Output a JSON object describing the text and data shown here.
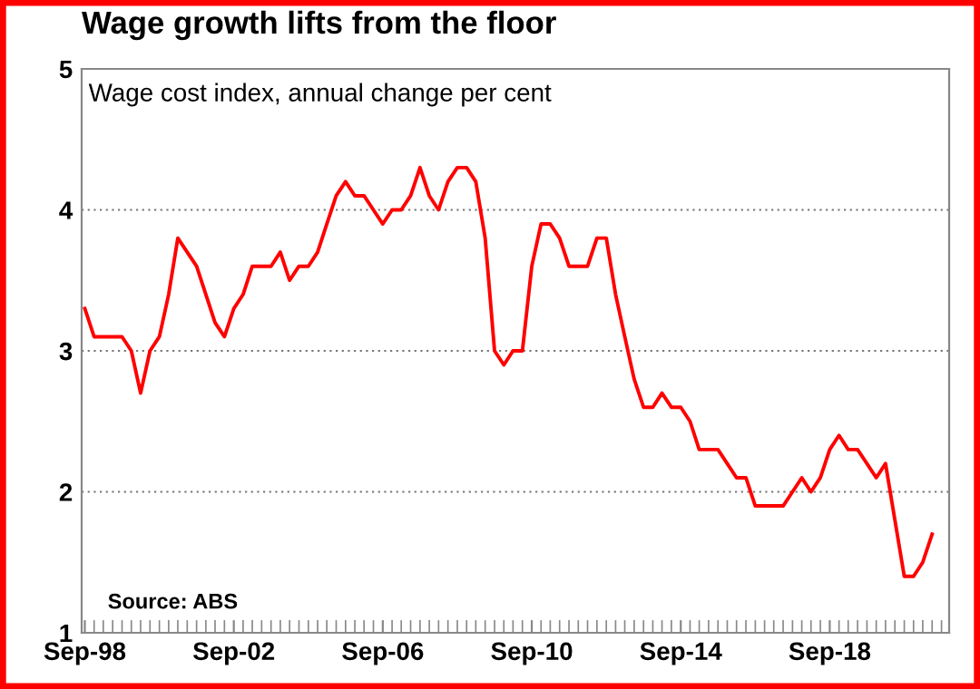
{
  "chart_data": {
    "type": "line",
    "title": "Wage growth lifts from the floor",
    "subtitle": "Wage cost index, annual change per cent",
    "annotations": [
      "Source: ABS"
    ],
    "x": [
      "1998-09",
      "1998-12",
      "1999-03",
      "1999-06",
      "1999-09",
      "1999-12",
      "2000-03",
      "2000-06",
      "2000-09",
      "2000-12",
      "2001-03",
      "2001-06",
      "2001-09",
      "2001-12",
      "2002-03",
      "2002-06",
      "2002-09",
      "2002-12",
      "2003-03",
      "2003-06",
      "2003-09",
      "2003-12",
      "2004-03",
      "2004-06",
      "2004-09",
      "2004-12",
      "2005-03",
      "2005-06",
      "2005-09",
      "2005-12",
      "2006-03",
      "2006-06",
      "2006-09",
      "2006-12",
      "2007-03",
      "2007-06",
      "2007-09",
      "2007-12",
      "2008-03",
      "2008-06",
      "2008-09",
      "2008-12",
      "2009-03",
      "2009-06",
      "2009-09",
      "2009-12",
      "2010-03",
      "2010-06",
      "2010-09",
      "2010-12",
      "2011-03",
      "2011-06",
      "2011-09",
      "2011-12",
      "2012-03",
      "2012-06",
      "2012-09",
      "2012-12",
      "2013-03",
      "2013-06",
      "2013-09",
      "2013-12",
      "2014-03",
      "2014-06",
      "2014-09",
      "2014-12",
      "2015-03",
      "2015-06",
      "2015-09",
      "2015-12",
      "2016-03",
      "2016-06",
      "2016-09",
      "2016-12",
      "2017-03",
      "2017-06",
      "2017-09",
      "2017-12",
      "2018-03",
      "2018-06",
      "2018-09",
      "2018-12",
      "2019-03",
      "2019-06",
      "2019-09",
      "2019-12",
      "2020-03",
      "2020-06",
      "2020-09",
      "2020-12",
      "2021-03",
      "2021-06"
    ],
    "series": [
      {
        "color": "#ff0000",
        "values": [
          3.3,
          3.1,
          3.1,
          3.1,
          3.1,
          3.0,
          2.7,
          3.0,
          3.1,
          3.4,
          3.8,
          3.7,
          3.6,
          3.4,
          3.2,
          3.1,
          3.3,
          3.4,
          3.6,
          3.6,
          3.6,
          3.7,
          3.5,
          3.6,
          3.6,
          3.7,
          3.9,
          4.1,
          4.2,
          4.1,
          4.1,
          4.0,
          3.9,
          4.0,
          4.0,
          4.1,
          4.3,
          4.1,
          4.0,
          4.2,
          4.3,
          4.3,
          4.2,
          3.8,
          3.0,
          2.9,
          3.0,
          3.0,
          3.6,
          3.9,
          3.9,
          3.8,
          3.6,
          3.6,
          3.6,
          3.8,
          3.8,
          3.4,
          3.1,
          2.8,
          2.6,
          2.6,
          2.7,
          2.6,
          2.6,
          2.5,
          2.3,
          2.3,
          2.3,
          2.2,
          2.1,
          2.1,
          1.9,
          1.9,
          1.9,
          1.9,
          2.0,
          2.1,
          2.0,
          2.1,
          2.3,
          2.4,
          2.3,
          2.3,
          2.2,
          2.1,
          2.2,
          1.8,
          1.4,
          1.4,
          1.5,
          1.7
        ]
      }
    ],
    "xlim": [
      "1998-08-01",
      "2021-11-15"
    ],
    "xticks": [
      {
        "value": "1998-09",
        "label": "Sep-98"
      },
      {
        "value": "2002-09",
        "label": "Sep-02"
      },
      {
        "value": "2006-09",
        "label": "Sep-06"
      },
      {
        "value": "2010-09",
        "label": "Sep-10"
      },
      {
        "value": "2014-09",
        "label": "Sep-14"
      },
      {
        "value": "2018-09",
        "label": "Sep-18"
      }
    ],
    "ylim": [
      1,
      5
    ],
    "yticks": [
      1,
      2,
      3,
      4,
      5
    ],
    "grid": "y",
    "marker": "none",
    "line_style": "solid",
    "legend": false
  }
}
